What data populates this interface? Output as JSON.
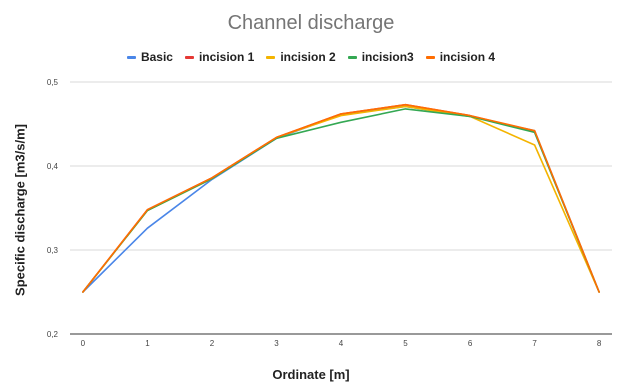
{
  "chart_data": {
    "type": "line",
    "title": "Channel discharge",
    "xlabel": "Ordinate [m]",
    "ylabel": "Specific discharge [m3/s/m]",
    "x": [
      0,
      1,
      2,
      3,
      4,
      5,
      6,
      7,
      8
    ],
    "x_tick_labels": [
      "0",
      "1",
      "2",
      "3",
      "4",
      "5",
      "6",
      "7",
      "8"
    ],
    "y_tick_labels": [
      "0,2",
      "0,3",
      "0,4",
      "0,5"
    ],
    "y_ticks": [
      0.2,
      0.3,
      0.4,
      0.5
    ],
    "ylim": [
      0.2,
      0.5
    ],
    "xlim": [
      -0.2,
      8.2
    ],
    "grid": "horizontal",
    "legend_position": "top",
    "series": [
      {
        "name": "Basic",
        "color": "#4a86e8",
        "values": [
          0.25,
          0.326,
          0.384,
          0.433,
          0.461,
          0.471,
          0.459,
          0.442,
          0.25
        ]
      },
      {
        "name": "incision 1",
        "color": "#e53935",
        "values": [
          0.25,
          0.348,
          0.386,
          0.434,
          0.462,
          0.473,
          0.46,
          0.441,
          0.25
        ]
      },
      {
        "name": "incision 2",
        "color": "#f4b400",
        "values": [
          0.25,
          0.347,
          0.385,
          0.434,
          0.46,
          0.471,
          0.459,
          0.425,
          0.25
        ]
      },
      {
        "name": "incision3",
        "color": "#34a853",
        "values": [
          0.25,
          0.347,
          0.385,
          0.433,
          0.452,
          0.468,
          0.459,
          0.44,
          0.25
        ]
      },
      {
        "name": "incision 4",
        "color": "#ff6d01",
        "values": [
          0.25,
          0.348,
          0.386,
          0.434,
          0.462,
          0.473,
          0.46,
          0.442,
          0.25
        ]
      }
    ]
  }
}
